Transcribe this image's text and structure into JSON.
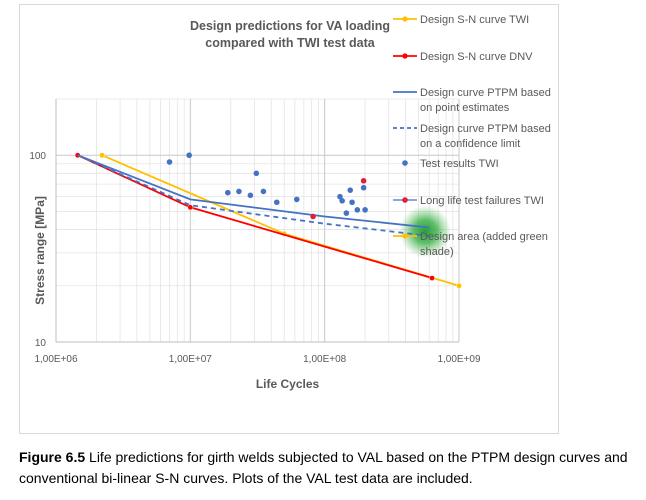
{
  "chart_data": {
    "type": "scatter",
    "title_lines": [
      "Design predictions for VA loading",
      "compared with TWI test data"
    ],
    "xlabel": "Life Cycles",
    "ylabel": "Stress range [MPa]",
    "xscale": "log",
    "yscale": "log",
    "xlim": [
      1000000,
      1000000000
    ],
    "ylim": [
      10,
      200
    ],
    "x_ticks": [
      {
        "value": 1000000,
        "label": "1,00E+06"
      },
      {
        "value": 10000000,
        "label": "1,00E+07"
      },
      {
        "value": 100000000,
        "label": "1,00E+08"
      },
      {
        "value": 1000000000,
        "label": "1,00E+09"
      }
    ],
    "y_ticks": [
      {
        "value": 10,
        "label": "10"
      },
      {
        "value": 100,
        "label": "100"
      }
    ],
    "grid": true,
    "legend_position": "right",
    "series": [
      {
        "name": "Design S-N curve TWI",
        "kind": "line-marker",
        "color": "#ffc000",
        "points": [
          [
            2200000,
            100
          ],
          [
            50000000,
            38
          ],
          [
            1000000000,
            20
          ]
        ]
      },
      {
        "name": "Design S-N curve DNV",
        "kind": "line-marker",
        "color": "#ff0000",
        "points": [
          [
            1450000,
            100
          ],
          [
            10000000,
            52.6
          ],
          [
            630000000,
            22
          ]
        ]
      },
      {
        "name": "Design curve PTPM based on point estimates",
        "kind": "line",
        "color": "#4472c4",
        "points": [
          [
            1450000,
            100
          ],
          [
            10000000,
            58
          ],
          [
            100000000,
            47
          ],
          [
            600000000,
            41
          ]
        ]
      },
      {
        "name": "Design curve PTPM based on a confidence limit",
        "kind": "dashed",
        "color": "#4472c4",
        "points": [
          [
            1450000,
            100
          ],
          [
            10000000,
            54
          ],
          [
            100000000,
            43
          ],
          [
            600000000,
            37
          ]
        ]
      },
      {
        "name": "Test results TWI",
        "kind": "points",
        "color": "#4472c4",
        "points": [
          [
            7000000,
            92
          ],
          [
            9800000,
            100
          ],
          [
            19000000,
            63
          ],
          [
            23000000,
            64
          ],
          [
            28000000,
            61
          ],
          [
            31000000,
            80
          ],
          [
            35000000,
            64
          ],
          [
            44000000,
            56
          ],
          [
            62000000,
            58
          ],
          [
            130000000,
            60
          ],
          [
            135000000,
            57
          ],
          [
            145000000,
            49
          ],
          [
            155000000,
            65
          ],
          [
            160000000,
            56
          ],
          [
            175000000,
            51
          ],
          [
            195000000,
            67
          ],
          [
            200000000,
            51
          ]
        ]
      },
      {
        "name": "Long life test failures TWI",
        "kind": "points",
        "color": "#e0203a",
        "points": [
          [
            82000000,
            47
          ],
          [
            195000000,
            73
          ]
        ]
      },
      {
        "name": "Design area (added green shade)",
        "kind": "area",
        "color": "#2e9e3a",
        "points": [
          [
            560000000,
            39
          ]
        ]
      }
    ]
  },
  "caption": {
    "label": "Figure 6.5",
    "text": " Life predictions for girth welds subjected to VAL based on the PTPM design curves and conventional bi-linear S-N curves. Plots of the VAL test data are included."
  }
}
